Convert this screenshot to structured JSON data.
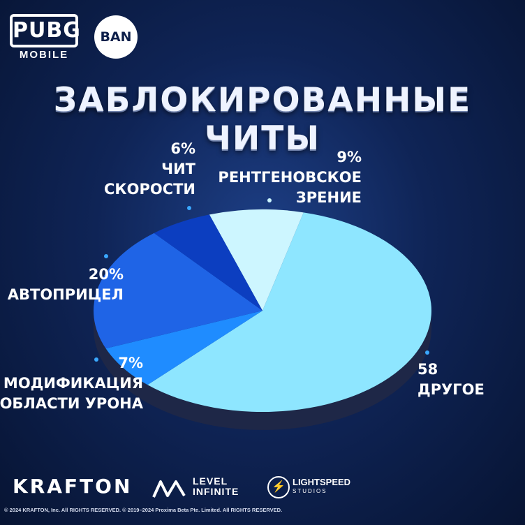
{
  "branding": {
    "game_logo": "PUBG",
    "game_logo_sub": "MOBILE",
    "ban_badge": "BAN",
    "publisher": "KRAFTON",
    "partner_1_line1": "LEVEL",
    "partner_1_line2": "INFINITE",
    "partner_2_line1": "LIGHTSPEED",
    "partner_2_line2": "STUDIOS"
  },
  "title": "ЗАБЛОКИРОВАННЫЕ ЧИТЫ",
  "copyright": "© 2024 KRAFTON, Inc. All RIGHTS RESERVED.   © 2019–2024 Proxima Beta Pte. Limited. All RIGHTS RESERVED.",
  "chart_data": {
    "type": "pie",
    "title": "ЗАБЛОКИРОВАННЫЕ ЧИТЫ",
    "slices": [
      {
        "label": "РЕНТГЕНОВСКОЕ ЗРЕНИЕ",
        "value_text": "9%",
        "value": 9,
        "color": "#cdf6ff"
      },
      {
        "label": "ДРУГОЕ",
        "value_text": "58",
        "value": 58,
        "color": "#8ee6ff"
      },
      {
        "label": "МОДИФИКАЦИЯ ОБЛАСТИ УРОНА",
        "value_text": "7%",
        "value": 7,
        "color": "#1f8cff"
      },
      {
        "label": "АВТОПРИЦЕЛ",
        "value_text": "20%",
        "value": 20,
        "color": "#1f64e6"
      },
      {
        "label": "ЧИТ СКОРОСТИ",
        "value_text": "6%",
        "value": 6,
        "color": "#0c3ec0"
      }
    ],
    "colors": {
      "side": "#1e2747",
      "dot": "#3aa8ff"
    }
  }
}
